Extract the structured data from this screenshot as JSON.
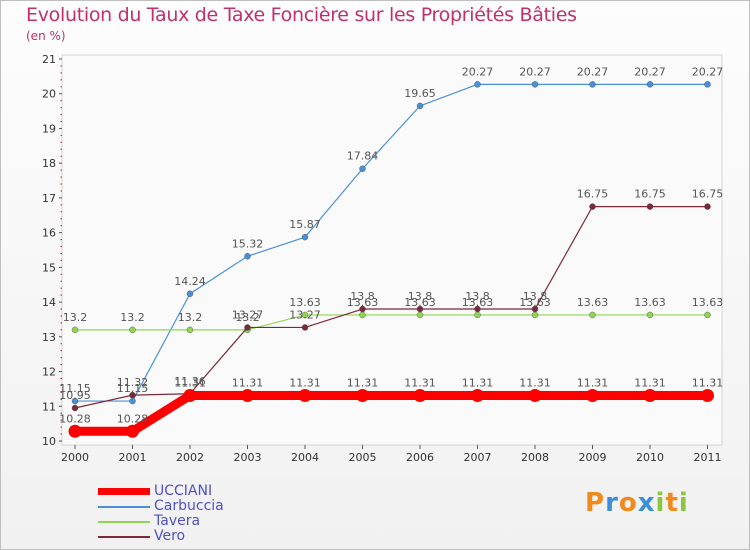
{
  "header": {
    "title": "Evolution du Taux de Taxe Foncière sur les Propriétés Bâties",
    "unit": "(en %)"
  },
  "chart_data": {
    "type": "line",
    "title": "Evolution du Taux de Taxe Foncière sur les Propriétés Bâties",
    "ylabel": "(en %)",
    "xlabel": "",
    "ylim": [
      10,
      21
    ],
    "yticks": [
      "10",
      "11",
      "12",
      "13",
      "14",
      "15",
      "16",
      "17",
      "18",
      "19",
      "20",
      "21"
    ],
    "categories": [
      "2000",
      "2001",
      "2002",
      "2003",
      "2004",
      "2005",
      "2006",
      "2007",
      "2008",
      "2009",
      "2010",
      "2011"
    ],
    "series": [
      {
        "name": "Carbuccia",
        "color": "#4a90d9",
        "values": [
          11.15,
          11.15,
          14.24,
          15.32,
          15.87,
          17.84,
          19.65,
          20.27,
          20.27,
          20.27,
          20.27,
          20.27
        ],
        "labels": [
          "11.15",
          "11.15",
          "14.24",
          "15.32",
          "15.87",
          "17.84",
          "19.65",
          "20.27",
          "20.27",
          "20.27",
          "20.27",
          "20.27"
        ]
      },
      {
        "name": "Tavera",
        "color": "#8fd650",
        "values": [
          13.2,
          13.2,
          13.2,
          13.2,
          13.63,
          13.63,
          13.63,
          13.63,
          13.63,
          13.63,
          13.63,
          13.63
        ],
        "labels": [
          "13.2",
          "13.2",
          "13.2",
          "13.2",
          "13.63",
          "13.63",
          "13.63",
          "13.63",
          "13.63",
          "13.63",
          "13.63",
          "13.63"
        ]
      },
      {
        "name": "Vero",
        "color": "#7a2a3a",
        "values": [
          10.95,
          11.32,
          11.36,
          13.27,
          13.27,
          13.8,
          13.8,
          13.8,
          13.8,
          16.75,
          16.75,
          16.75
        ],
        "labels": [
          "10.95",
          "11.32",
          "11.36",
          "13.27",
          "13.27",
          "13.8",
          "13.8",
          "13.8",
          "13.8",
          "16.75",
          "16.75",
          "16.75"
        ]
      },
      {
        "name": "UCCIANI",
        "color": "#ff0000",
        "values": [
          10.28,
          10.28,
          11.31,
          11.31,
          11.31,
          11.31,
          11.31,
          11.31,
          11.31,
          11.31,
          11.31,
          11.31
        ],
        "labels": [
          "10.28",
          "10.28",
          "11.31",
          "11.31",
          "11.31",
          "11.31",
          "11.31",
          "11.31",
          "11.31",
          "11.31",
          "11.31",
          "11.31"
        ]
      }
    ],
    "legend": [
      "UCCIANI",
      "Carbuccia",
      "Tavera",
      "Vero"
    ],
    "grid": false,
    "legend_position": "bottom-left"
  },
  "logo": {
    "letters": [
      "P",
      "r",
      "o",
      "x",
      "i",
      "t",
      "i"
    ],
    "colors": [
      "#f08a1c",
      "#3a8fd8",
      "#f08a1c",
      "#3a8fd8",
      "#8cc63f",
      "#f08a1c",
      "#8cc63f"
    ]
  }
}
